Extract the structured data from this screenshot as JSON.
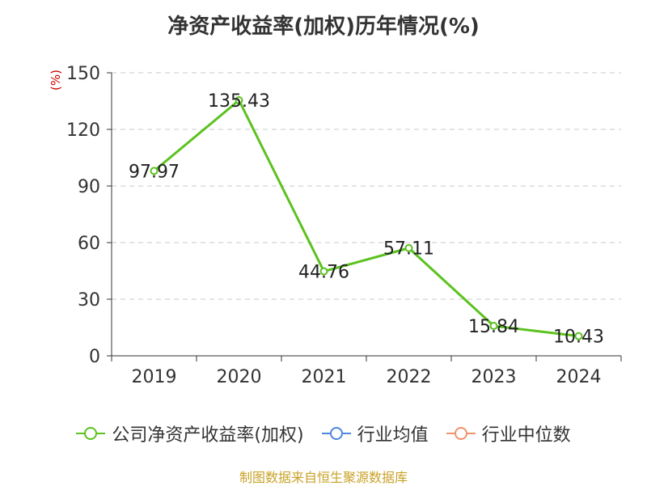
{
  "title": "净资产收益率(加权)历年情况(%)",
  "unit_label": "(%)",
  "footer": "制图数据来自恒生聚源数据库",
  "legend": [
    {
      "label": "公司净资产收益率(加权)",
      "color": "#5bc21f"
    },
    {
      "label": "行业均值",
      "color": "#4f86e0"
    },
    {
      "label": "行业中位数",
      "color": "#f0926a"
    }
  ],
  "chart_data": {
    "type": "line",
    "categories": [
      "2019",
      "2020",
      "2021",
      "2022",
      "2023",
      "2024"
    ],
    "ylim": [
      0,
      150
    ],
    "yticks": [
      0,
      30,
      60,
      90,
      120,
      150
    ],
    "series": [
      {
        "name": "公司净资产收益率(加权)",
        "color": "#5bc21f",
        "values": [
          97.97,
          135.43,
          44.76,
          57.11,
          15.84,
          10.43
        ],
        "labels": [
          "97.97",
          "135.43",
          "44.76",
          "57.11",
          "15.84",
          "10.43"
        ]
      }
    ],
    "grid": true
  }
}
